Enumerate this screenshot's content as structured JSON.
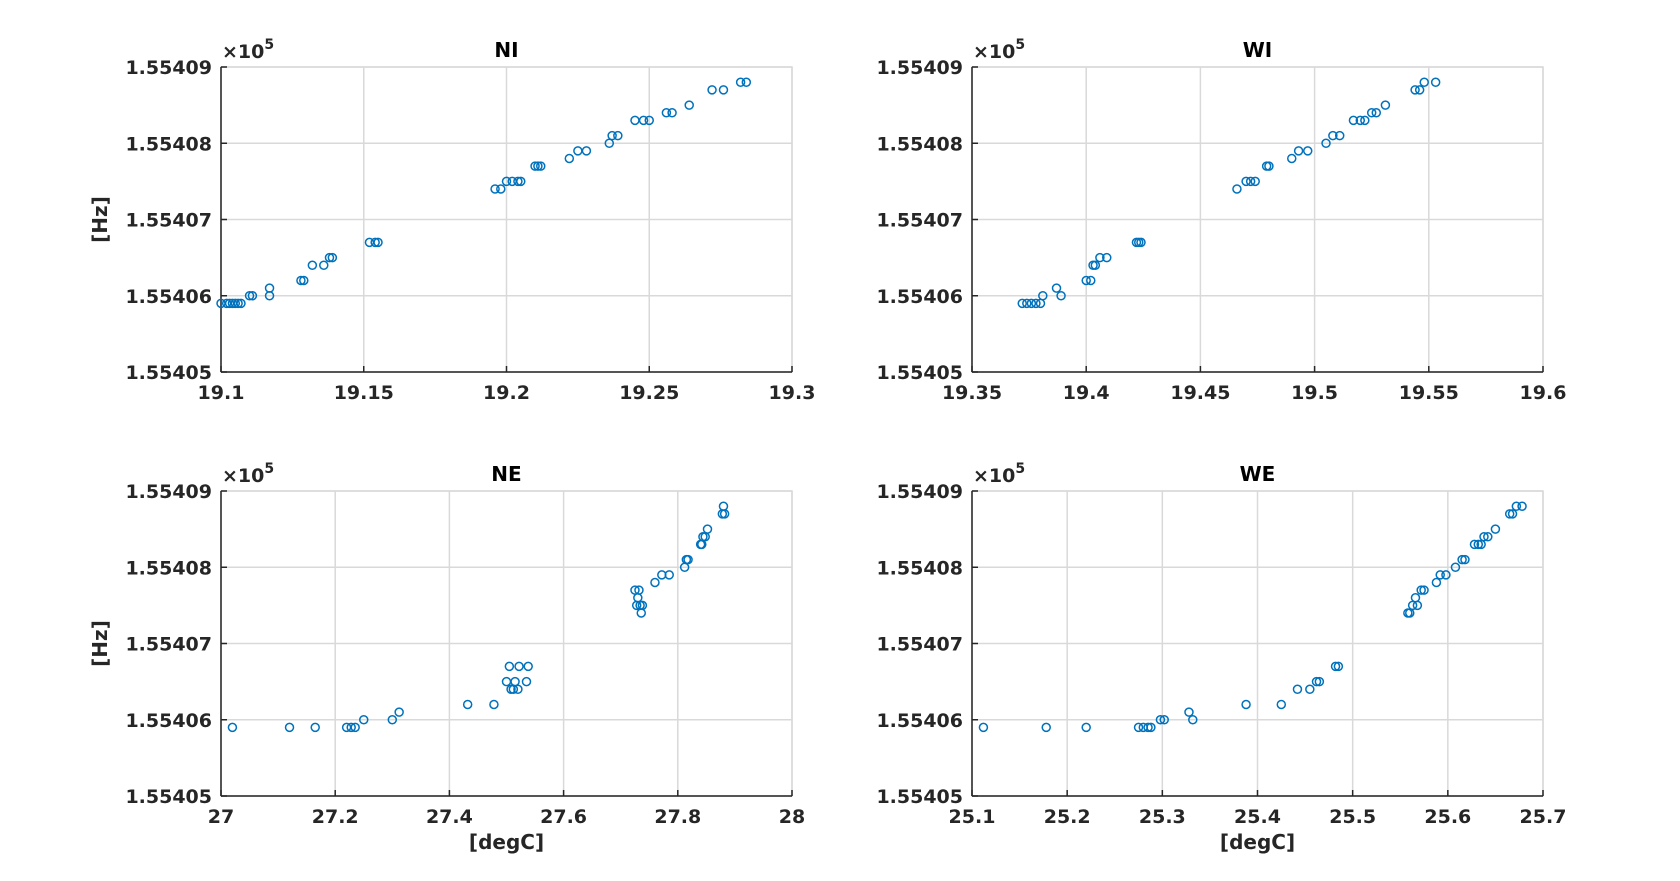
{
  "chart_data": [
    {
      "type": "scatter",
      "title": "NI",
      "xlabel": "",
      "ylabel": "[Hz]",
      "xlim": [
        19.1,
        19.3
      ],
      "ylim": [
        1.55405,
        1.55409
      ],
      "xticks": [
        "19.1",
        "19.15",
        "19.2",
        "19.25",
        "19.3"
      ],
      "yticks": [
        "1.55405",
        "1.55406",
        "1.55407",
        "1.55408",
        "1.55409"
      ],
      "ymultiplier": "×10",
      "yexponent": "5",
      "grid": true,
      "points": [
        [
          19.1,
          1.554059
        ],
        [
          19.102,
          1.554059
        ],
        [
          19.103,
          1.554059
        ],
        [
          19.104,
          1.554059
        ],
        [
          19.105,
          1.554059
        ],
        [
          19.106,
          1.554059
        ],
        [
          19.107,
          1.554059
        ],
        [
          19.11,
          1.55406
        ],
        [
          19.111,
          1.55406
        ],
        [
          19.117,
          1.55406
        ],
        [
          19.117,
          1.554061
        ],
        [
          19.128,
          1.554062
        ],
        [
          19.129,
          1.554062
        ],
        [
          19.132,
          1.554064
        ],
        [
          19.136,
          1.554064
        ],
        [
          19.138,
          1.554065
        ],
        [
          19.139,
          1.554065
        ],
        [
          19.152,
          1.554067
        ],
        [
          19.154,
          1.554067
        ],
        [
          19.155,
          1.554067
        ],
        [
          19.196,
          1.554074
        ],
        [
          19.198,
          1.554074
        ],
        [
          19.2,
          1.554075
        ],
        [
          19.202,
          1.554075
        ],
        [
          19.204,
          1.554075
        ],
        [
          19.205,
          1.554075
        ],
        [
          19.21,
          1.554077
        ],
        [
          19.211,
          1.554077
        ],
        [
          19.212,
          1.554077
        ],
        [
          19.222,
          1.554078
        ],
        [
          19.225,
          1.554079
        ],
        [
          19.228,
          1.554079
        ],
        [
          19.236,
          1.55408
        ],
        [
          19.237,
          1.554081
        ],
        [
          19.239,
          1.554081
        ],
        [
          19.245,
          1.554083
        ],
        [
          19.248,
          1.554083
        ],
        [
          19.25,
          1.554083
        ],
        [
          19.256,
          1.554084
        ],
        [
          19.258,
          1.554084
        ],
        [
          19.264,
          1.554085
        ],
        [
          19.272,
          1.554087
        ],
        [
          19.276,
          1.554087
        ],
        [
          19.282,
          1.554088
        ],
        [
          19.284,
          1.554088
        ]
      ]
    },
    {
      "type": "scatter",
      "title": "WI",
      "xlabel": "",
      "ylabel": "",
      "xlim": [
        19.35,
        19.6
      ],
      "ylim": [
        1.55405,
        1.55409
      ],
      "xticks": [
        "19.35",
        "19.4",
        "19.45",
        "19.5",
        "19.55",
        "19.6"
      ],
      "yticks": [
        "1.55405",
        "1.55406",
        "1.55407",
        "1.55408",
        "1.55409"
      ],
      "ymultiplier": "×10",
      "yexponent": "5",
      "grid": true,
      "points": [
        [
          19.372,
          1.554059
        ],
        [
          19.374,
          1.554059
        ],
        [
          19.376,
          1.554059
        ],
        [
          19.378,
          1.554059
        ],
        [
          19.38,
          1.554059
        ],
        [
          19.381,
          1.55406
        ],
        [
          19.387,
          1.554061
        ],
        [
          19.389,
          1.55406
        ],
        [
          19.4,
          1.554062
        ],
        [
          19.402,
          1.554062
        ],
        [
          19.403,
          1.554064
        ],
        [
          19.404,
          1.554064
        ],
        [
          19.406,
          1.554065
        ],
        [
          19.409,
          1.554065
        ],
        [
          19.422,
          1.554067
        ],
        [
          19.423,
          1.554067
        ],
        [
          19.424,
          1.554067
        ],
        [
          19.466,
          1.554074
        ],
        [
          19.47,
          1.554075
        ],
        [
          19.472,
          1.554075
        ],
        [
          19.474,
          1.554075
        ],
        [
          19.479,
          1.554077
        ],
        [
          19.48,
          1.554077
        ],
        [
          19.49,
          1.554078
        ],
        [
          19.493,
          1.554079
        ],
        [
          19.497,
          1.554079
        ],
        [
          19.505,
          1.55408
        ],
        [
          19.508,
          1.554081
        ],
        [
          19.511,
          1.554081
        ],
        [
          19.517,
          1.554083
        ],
        [
          19.52,
          1.554083
        ],
        [
          19.522,
          1.554083
        ],
        [
          19.525,
          1.554084
        ],
        [
          19.527,
          1.554084
        ],
        [
          19.531,
          1.554085
        ],
        [
          19.544,
          1.554087
        ],
        [
          19.546,
          1.554087
        ],
        [
          19.548,
          1.554088
        ],
        [
          19.553,
          1.554088
        ]
      ]
    },
    {
      "type": "scatter",
      "title": "NE",
      "xlabel": "[degC]",
      "ylabel": "[Hz]",
      "xlim": [
        27,
        28
      ],
      "ylim": [
        1.55405,
        1.55409
      ],
      "xticks": [
        "27",
        "27.2",
        "27.4",
        "27.6",
        "27.8",
        "28"
      ],
      "yticks": [
        "1.55405",
        "1.55406",
        "1.55407",
        "1.55408",
        "1.55409"
      ],
      "ymultiplier": "×10",
      "yexponent": "5",
      "grid": true,
      "points": [
        [
          27.02,
          1.554059
        ],
        [
          27.12,
          1.554059
        ],
        [
          27.165,
          1.554059
        ],
        [
          27.22,
          1.554059
        ],
        [
          27.228,
          1.554059
        ],
        [
          27.235,
          1.554059
        ],
        [
          27.25,
          1.55406
        ],
        [
          27.3,
          1.55406
        ],
        [
          27.312,
          1.554061
        ],
        [
          27.432,
          1.554062
        ],
        [
          27.478,
          1.554062
        ],
        [
          27.5,
          1.554065
        ],
        [
          27.505,
          1.554067
        ],
        [
          27.508,
          1.554064
        ],
        [
          27.512,
          1.554064
        ],
        [
          27.515,
          1.554065
        ],
        [
          27.52,
          1.554064
        ],
        [
          27.522,
          1.554067
        ],
        [
          27.535,
          1.554065
        ],
        [
          27.538,
          1.554067
        ],
        [
          27.725,
          1.554077
        ],
        [
          27.728,
          1.554075
        ],
        [
          27.73,
          1.554076
        ],
        [
          27.732,
          1.554077
        ],
        [
          27.734,
          1.554075
        ],
        [
          27.736,
          1.554074
        ],
        [
          27.738,
          1.554075
        ],
        [
          27.76,
          1.554078
        ],
        [
          27.772,
          1.554079
        ],
        [
          27.785,
          1.554079
        ],
        [
          27.812,
          1.55408
        ],
        [
          27.815,
          1.554081
        ],
        [
          27.818,
          1.554081
        ],
        [
          27.84,
          1.554083
        ],
        [
          27.842,
          1.554083
        ],
        [
          27.844,
          1.554084
        ],
        [
          27.848,
          1.554084
        ],
        [
          27.852,
          1.554085
        ],
        [
          27.878,
          1.554087
        ],
        [
          27.88,
          1.554088
        ],
        [
          27.882,
          1.554087
        ]
      ]
    },
    {
      "type": "scatter",
      "title": "WE",
      "xlabel": "[degC]",
      "ylabel": "",
      "xlim": [
        25.1,
        25.7
      ],
      "ylim": [
        1.55405,
        1.55409
      ],
      "xticks": [
        "25.1",
        "25.2",
        "25.3",
        "25.4",
        "25.5",
        "25.6",
        "25.7"
      ],
      "yticks": [
        "1.55405",
        "1.55406",
        "1.55407",
        "1.55408",
        "1.55409"
      ],
      "ymultiplier": "×10",
      "yexponent": "5",
      "grid": true,
      "points": [
        [
          25.112,
          1.554059
        ],
        [
          25.178,
          1.554059
        ],
        [
          25.22,
          1.554059
        ],
        [
          25.275,
          1.554059
        ],
        [
          25.28,
          1.554059
        ],
        [
          25.285,
          1.554059
        ],
        [
          25.288,
          1.554059
        ],
        [
          25.298,
          1.55406
        ],
        [
          25.302,
          1.55406
        ],
        [
          25.328,
          1.554061
        ],
        [
          25.332,
          1.55406
        ],
        [
          25.388,
          1.554062
        ],
        [
          25.425,
          1.554062
        ],
        [
          25.442,
          1.554064
        ],
        [
          25.455,
          1.554064
        ],
        [
          25.462,
          1.554065
        ],
        [
          25.465,
          1.554065
        ],
        [
          25.482,
          1.554067
        ],
        [
          25.485,
          1.554067
        ],
        [
          25.558,
          1.554074
        ],
        [
          25.56,
          1.554074
        ],
        [
          25.563,
          1.554075
        ],
        [
          25.566,
          1.554076
        ],
        [
          25.568,
          1.554075
        ],
        [
          25.572,
          1.554077
        ],
        [
          25.575,
          1.554077
        ],
        [
          25.588,
          1.554078
        ],
        [
          25.592,
          1.554079
        ],
        [
          25.598,
          1.554079
        ],
        [
          25.608,
          1.55408
        ],
        [
          25.615,
          1.554081
        ],
        [
          25.618,
          1.554081
        ],
        [
          25.628,
          1.554083
        ],
        [
          25.632,
          1.554083
        ],
        [
          25.635,
          1.554083
        ],
        [
          25.638,
          1.554084
        ],
        [
          25.642,
          1.554084
        ],
        [
          25.65,
          1.554085
        ],
        [
          25.665,
          1.554087
        ],
        [
          25.668,
          1.554087
        ],
        [
          25.672,
          1.554088
        ],
        [
          25.678,
          1.554088
        ]
      ]
    }
  ]
}
